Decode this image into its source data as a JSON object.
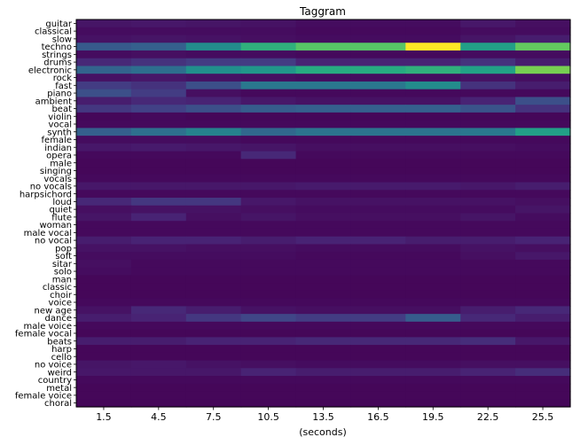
{
  "chart_data": {
    "type": "heatmap",
    "title": "Taggram",
    "xlabel": "(seconds)",
    "ylabel": "",
    "x_ticks": [
      "1.5",
      "4.5",
      "7.5",
      "10.5",
      "13.5",
      "16.5",
      "19.5",
      "22.5",
      "25.5"
    ],
    "colormap": "viridis",
    "value_range": [
      0,
      1
    ],
    "tags": [
      "guitar",
      "classical",
      "slow",
      "techno",
      "strings",
      "drums",
      "electronic",
      "rock",
      "fast",
      "piano",
      "ambient",
      "beat",
      "violin",
      "vocal",
      "synth",
      "female",
      "indian",
      "opera",
      "male",
      "singing",
      "vocals",
      "no vocals",
      "harpsichord",
      "loud",
      "quiet",
      "flute",
      "woman",
      "male vocal",
      "no vocal",
      "pop",
      "soft",
      "sitar",
      "solo",
      "man",
      "classic",
      "choir",
      "voice",
      "new age",
      "dance",
      "male voice",
      "female vocal",
      "beats",
      "harp",
      "cello",
      "no voice",
      "weird",
      "country",
      "metal",
      "female voice",
      "choral"
    ],
    "values": [
      [
        0.07,
        0.08,
        0.07,
        0.06,
        0.04,
        0.04,
        0.04,
        0.08,
        0.05
      ],
      [
        0.04,
        0.04,
        0.04,
        0.04,
        0.03,
        0.03,
        0.03,
        0.04,
        0.04
      ],
      [
        0.06,
        0.07,
        0.06,
        0.05,
        0.04,
        0.04,
        0.04,
        0.07,
        0.1
      ],
      [
        0.35,
        0.38,
        0.6,
        0.78,
        0.86,
        0.86,
        1.0,
        0.7,
        0.88
      ],
      [
        0.04,
        0.05,
        0.04,
        0.04,
        0.03,
        0.03,
        0.03,
        0.04,
        0.04
      ],
      [
        0.14,
        0.18,
        0.22,
        0.22,
        0.12,
        0.12,
        0.12,
        0.18,
        0.1
      ],
      [
        0.4,
        0.45,
        0.62,
        0.66,
        0.76,
        0.76,
        0.78,
        0.72,
        0.9
      ],
      [
        0.06,
        0.08,
        0.06,
        0.05,
        0.04,
        0.04,
        0.04,
        0.06,
        0.05
      ],
      [
        0.22,
        0.18,
        0.3,
        0.5,
        0.5,
        0.5,
        0.6,
        0.18,
        0.1
      ],
      [
        0.3,
        0.22,
        0.05,
        0.03,
        0.03,
        0.03,
        0.03,
        0.03,
        0.03
      ],
      [
        0.1,
        0.14,
        0.12,
        0.08,
        0.06,
        0.06,
        0.06,
        0.12,
        0.3
      ],
      [
        0.2,
        0.24,
        0.3,
        0.36,
        0.38,
        0.38,
        0.38,
        0.32,
        0.18
      ],
      [
        0.02,
        0.03,
        0.02,
        0.02,
        0.02,
        0.02,
        0.02,
        0.02,
        0.02
      ],
      [
        0.03,
        0.03,
        0.03,
        0.03,
        0.03,
        0.03,
        0.03,
        0.03,
        0.03
      ],
      [
        0.38,
        0.46,
        0.55,
        0.42,
        0.48,
        0.48,
        0.48,
        0.5,
        0.7
      ],
      [
        0.04,
        0.04,
        0.04,
        0.03,
        0.03,
        0.03,
        0.03,
        0.03,
        0.03
      ],
      [
        0.08,
        0.09,
        0.08,
        0.07,
        0.05,
        0.05,
        0.05,
        0.05,
        0.04
      ],
      [
        0.03,
        0.03,
        0.03,
        0.14,
        0.03,
        0.03,
        0.03,
        0.03,
        0.03
      ],
      [
        0.02,
        0.02,
        0.02,
        0.02,
        0.02,
        0.02,
        0.02,
        0.02,
        0.02
      ],
      [
        0.02,
        0.02,
        0.02,
        0.02,
        0.02,
        0.02,
        0.02,
        0.02,
        0.02
      ],
      [
        0.03,
        0.03,
        0.03,
        0.03,
        0.03,
        0.03,
        0.03,
        0.03,
        0.03
      ],
      [
        0.08,
        0.08,
        0.08,
        0.08,
        0.09,
        0.09,
        0.09,
        0.08,
        0.1
      ],
      [
        0.03,
        0.03,
        0.03,
        0.03,
        0.03,
        0.03,
        0.03,
        0.03,
        0.03
      ],
      [
        0.14,
        0.2,
        0.2,
        0.08,
        0.06,
        0.06,
        0.06,
        0.06,
        0.05
      ],
      [
        0.05,
        0.06,
        0.06,
        0.05,
        0.04,
        0.04,
        0.04,
        0.04,
        0.07
      ],
      [
        0.07,
        0.12,
        0.05,
        0.07,
        0.05,
        0.05,
        0.05,
        0.07,
        0.04
      ],
      [
        0.03,
        0.03,
        0.03,
        0.03,
        0.03,
        0.03,
        0.03,
        0.03,
        0.03
      ],
      [
        0.03,
        0.03,
        0.03,
        0.03,
        0.03,
        0.03,
        0.03,
        0.03,
        0.03
      ],
      [
        0.1,
        0.12,
        0.12,
        0.1,
        0.12,
        0.12,
        0.1,
        0.1,
        0.12
      ],
      [
        0.06,
        0.06,
        0.05,
        0.05,
        0.04,
        0.04,
        0.04,
        0.06,
        0.05
      ],
      [
        0.04,
        0.04,
        0.04,
        0.04,
        0.03,
        0.03,
        0.03,
        0.05,
        0.08
      ],
      [
        0.05,
        0.03,
        0.03,
        0.03,
        0.03,
        0.03,
        0.03,
        0.03,
        0.03
      ],
      [
        0.04,
        0.03,
        0.03,
        0.03,
        0.03,
        0.03,
        0.03,
        0.03,
        0.03
      ],
      [
        0.02,
        0.02,
        0.02,
        0.02,
        0.02,
        0.02,
        0.02,
        0.02,
        0.02
      ],
      [
        0.02,
        0.02,
        0.02,
        0.02,
        0.02,
        0.02,
        0.02,
        0.02,
        0.02
      ],
      [
        0.02,
        0.02,
        0.02,
        0.02,
        0.02,
        0.02,
        0.02,
        0.02,
        0.02
      ],
      [
        0.03,
        0.03,
        0.03,
        0.03,
        0.03,
        0.03,
        0.03,
        0.03,
        0.03
      ],
      [
        0.06,
        0.14,
        0.1,
        0.06,
        0.05,
        0.05,
        0.05,
        0.1,
        0.14
      ],
      [
        0.1,
        0.12,
        0.2,
        0.26,
        0.22,
        0.22,
        0.36,
        0.14,
        0.1
      ],
      [
        0.03,
        0.03,
        0.03,
        0.03,
        0.03,
        0.03,
        0.03,
        0.03,
        0.03
      ],
      [
        0.02,
        0.02,
        0.02,
        0.02,
        0.02,
        0.02,
        0.02,
        0.02,
        0.02
      ],
      [
        0.1,
        0.1,
        0.12,
        0.12,
        0.14,
        0.14,
        0.14,
        0.16,
        0.08
      ],
      [
        0.02,
        0.02,
        0.02,
        0.02,
        0.02,
        0.02,
        0.02,
        0.02,
        0.02
      ],
      [
        0.02,
        0.02,
        0.02,
        0.02,
        0.02,
        0.02,
        0.02,
        0.02,
        0.02
      ],
      [
        0.07,
        0.08,
        0.06,
        0.05,
        0.04,
        0.04,
        0.04,
        0.05,
        0.05
      ],
      [
        0.08,
        0.08,
        0.08,
        0.12,
        0.1,
        0.1,
        0.1,
        0.12,
        0.16
      ],
      [
        0.03,
        0.03,
        0.03,
        0.03,
        0.03,
        0.03,
        0.03,
        0.03,
        0.03
      ],
      [
        0.02,
        0.02,
        0.02,
        0.02,
        0.02,
        0.02,
        0.02,
        0.02,
        0.02
      ],
      [
        0.02,
        0.02,
        0.02,
        0.02,
        0.02,
        0.02,
        0.02,
        0.02,
        0.02
      ],
      [
        0.02,
        0.02,
        0.02,
        0.02,
        0.02,
        0.02,
        0.02,
        0.02,
        0.02
      ]
    ]
  }
}
